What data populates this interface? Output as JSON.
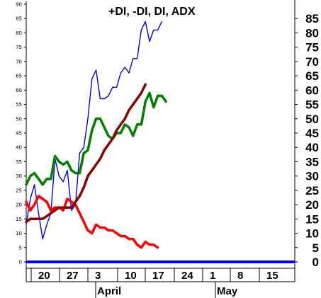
{
  "chart_data": {
    "type": "line",
    "title": "+DI, -DI, DI, ADX",
    "ylim": [
      0,
      90
    ],
    "left_ticks": [
      0,
      5,
      10,
      15,
      20,
      25,
      30,
      35,
      40,
      45,
      50,
      55,
      60,
      65,
      70,
      75,
      80,
      85,
      90
    ],
    "right_ticks": [
      0,
      5,
      10,
      15,
      20,
      25,
      30,
      35,
      40,
      45,
      50,
      55,
      60,
      65,
      70,
      75,
      80,
      85
    ],
    "x_tick_labels": [
      "20",
      "27",
      "3",
      "10",
      "17",
      "24",
      "1",
      "8",
      "15"
    ],
    "month_labels": [
      "April",
      "May"
    ],
    "baseline": 0,
    "series": [
      {
        "color": "#0000ee",
        "values": [
          13,
          22,
          27,
          17,
          8,
          13,
          17,
          36,
          30,
          28,
          32,
          18,
          20,
          38,
          40,
          50,
          64,
          67,
          57,
          57,
          58,
          61,
          61,
          66,
          68,
          66,
          71,
          71,
          81,
          84,
          77,
          81,
          81,
          84
        ]
      },
      {
        "color": "#ff0000",
        "values": [
          21,
          18,
          20,
          23,
          22,
          21,
          18,
          19,
          19,
          18,
          22,
          21,
          20,
          17,
          14,
          11,
          10,
          13,
          12,
          12,
          11,
          11,
          10,
          9,
          9,
          8,
          8,
          6,
          5,
          7,
          6,
          6,
          5
        ]
      },
      {
        "color": "#008000",
        "values": [
          27,
          30,
          31,
          29,
          27,
          29,
          29,
          37,
          35,
          34,
          35,
          32,
          31,
          31,
          38,
          39,
          46,
          50,
          50,
          47,
          44,
          43,
          45,
          45,
          48,
          47,
          44,
          48,
          48,
          56,
          59,
          54,
          58,
          58,
          56
        ]
      },
      {
        "color": "#8b0000",
        "values": [
          14,
          15,
          15,
          15,
          15,
          16,
          17,
          18,
          19,
          19,
          19,
          19,
          21,
          23,
          26,
          30,
          32,
          34,
          36,
          39,
          41,
          43,
          46,
          48,
          50,
          53,
          55,
          57,
          59,
          62
        ]
      }
    ]
  }
}
